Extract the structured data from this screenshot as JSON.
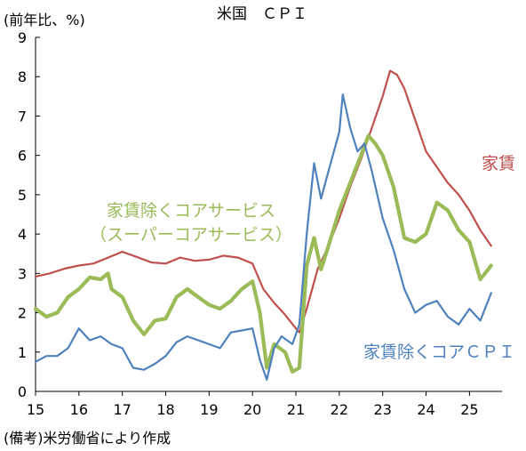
{
  "chart_data": {
    "type": "line",
    "title": "米国　ＣＰＩ",
    "ylabel": "(前年比、%)",
    "xlabel": "",
    "source_note": "(備考)米労働省により作成",
    "ylim": [
      0,
      9
    ],
    "yticks": [
      0,
      1,
      2,
      3,
      4,
      5,
      6,
      7,
      8,
      9
    ],
    "xlim": [
      2015,
      2025.75
    ],
    "xticks": [
      {
        "label": "15",
        "x": 2015.0
      },
      {
        "label": "16",
        "x": 2016.0
      },
      {
        "label": "17",
        "x": 2017.0
      },
      {
        "label": "18",
        "x": 2018.0
      },
      {
        "label": "19",
        "x": 2019.0
      },
      {
        "label": "20",
        "x": 2020.0
      },
      {
        "label": "21",
        "x": 2021.0
      },
      {
        "label": "22",
        "x": 2022.0
      },
      {
        "label": "23",
        "x": 2023.0
      },
      {
        "label": "24",
        "x": 2024.0
      },
      {
        "label": "25",
        "x": 2025.0
      }
    ],
    "grid": false,
    "series": [
      {
        "name": "家賃",
        "label_lines": [
          "家賃"
        ],
        "color": "#c0504d",
        "points": [
          [
            2015.0,
            2.92
          ],
          [
            2015.33,
            3.0
          ],
          [
            2015.67,
            3.12
          ],
          [
            2016.0,
            3.2
          ],
          [
            2016.33,
            3.25
          ],
          [
            2016.67,
            3.4
          ],
          [
            2017.0,
            3.55
          ],
          [
            2017.33,
            3.42
          ],
          [
            2017.67,
            3.28
          ],
          [
            2018.0,
            3.25
          ],
          [
            2018.33,
            3.4
          ],
          [
            2018.67,
            3.32
          ],
          [
            2019.0,
            3.35
          ],
          [
            2019.33,
            3.45
          ],
          [
            2019.67,
            3.4
          ],
          [
            2020.0,
            3.25
          ],
          [
            2020.25,
            2.6
          ],
          [
            2020.5,
            2.25
          ],
          [
            2020.75,
            1.95
          ],
          [
            2021.0,
            1.6
          ],
          [
            2021.08,
            1.5
          ],
          [
            2021.25,
            2.1
          ],
          [
            2021.5,
            3.1
          ],
          [
            2021.75,
            3.7
          ],
          [
            2022.0,
            4.4
          ],
          [
            2022.25,
            5.2
          ],
          [
            2022.5,
            5.9
          ],
          [
            2022.75,
            6.7
          ],
          [
            2023.0,
            7.5
          ],
          [
            2023.17,
            8.15
          ],
          [
            2023.33,
            8.05
          ],
          [
            2023.5,
            7.7
          ],
          [
            2023.75,
            6.9
          ],
          [
            2024.0,
            6.1
          ],
          [
            2024.25,
            5.7
          ],
          [
            2024.5,
            5.3
          ],
          [
            2024.75,
            5.0
          ],
          [
            2025.0,
            4.6
          ],
          [
            2025.25,
            4.1
          ],
          [
            2025.5,
            3.7
          ]
        ]
      },
      {
        "name": "家賃除くコアサービス",
        "label_lines": [
          "家賃除くコアサービス",
          "（スーパーコアサービス）"
        ],
        "color": "#9bbb59",
        "points": [
          [
            2015.0,
            2.1
          ],
          [
            2015.25,
            1.9
          ],
          [
            2015.5,
            2.0
          ],
          [
            2015.75,
            2.4
          ],
          [
            2016.0,
            2.6
          ],
          [
            2016.25,
            2.9
          ],
          [
            2016.5,
            2.85
          ],
          [
            2016.67,
            3.0
          ],
          [
            2016.75,
            2.6
          ],
          [
            2017.0,
            2.4
          ],
          [
            2017.25,
            1.8
          ],
          [
            2017.5,
            1.45
          ],
          [
            2017.75,
            1.8
          ],
          [
            2018.0,
            1.85
          ],
          [
            2018.25,
            2.4
          ],
          [
            2018.5,
            2.6
          ],
          [
            2018.75,
            2.4
          ],
          [
            2019.0,
            2.2
          ],
          [
            2019.25,
            2.1
          ],
          [
            2019.5,
            2.3
          ],
          [
            2019.75,
            2.6
          ],
          [
            2020.0,
            2.8
          ],
          [
            2020.17,
            2.0
          ],
          [
            2020.33,
            0.6
          ],
          [
            2020.5,
            1.2
          ],
          [
            2020.75,
            1.0
          ],
          [
            2020.92,
            0.5
          ],
          [
            2021.08,
            0.6
          ],
          [
            2021.25,
            3.2
          ],
          [
            2021.42,
            3.9
          ],
          [
            2021.58,
            3.1
          ],
          [
            2021.75,
            3.7
          ],
          [
            2022.0,
            4.6
          ],
          [
            2022.25,
            5.3
          ],
          [
            2022.5,
            6.0
          ],
          [
            2022.67,
            6.5
          ],
          [
            2022.83,
            6.3
          ],
          [
            2023.0,
            6.0
          ],
          [
            2023.25,
            5.2
          ],
          [
            2023.5,
            3.9
          ],
          [
            2023.75,
            3.8
          ],
          [
            2024.0,
            4.0
          ],
          [
            2024.25,
            4.8
          ],
          [
            2024.5,
            4.6
          ],
          [
            2024.75,
            4.1
          ],
          [
            2025.0,
            3.8
          ],
          [
            2025.25,
            2.85
          ],
          [
            2025.5,
            3.2
          ]
        ]
      },
      {
        "name": "家賃除くコアＣＰＩ",
        "label_lines": [
          "家賃除くコアＣＰＩ"
        ],
        "color": "#4f81bd",
        "points": [
          [
            2015.0,
            0.75
          ],
          [
            2015.25,
            0.9
          ],
          [
            2015.5,
            0.9
          ],
          [
            2015.75,
            1.1
          ],
          [
            2016.0,
            1.6
          ],
          [
            2016.25,
            1.3
          ],
          [
            2016.5,
            1.4
          ],
          [
            2016.75,
            1.2
          ],
          [
            2017.0,
            1.1
          ],
          [
            2017.25,
            0.6
          ],
          [
            2017.5,
            0.55
          ],
          [
            2017.75,
            0.7
          ],
          [
            2018.0,
            0.9
          ],
          [
            2018.25,
            1.25
          ],
          [
            2018.5,
            1.4
          ],
          [
            2018.75,
            1.3
          ],
          [
            2019.0,
            1.2
          ],
          [
            2019.25,
            1.1
          ],
          [
            2019.5,
            1.5
          ],
          [
            2019.75,
            1.55
          ],
          [
            2020.0,
            1.6
          ],
          [
            2020.17,
            0.8
          ],
          [
            2020.33,
            0.3
          ],
          [
            2020.5,
            1.1
          ],
          [
            2020.67,
            1.4
          ],
          [
            2020.92,
            1.2
          ],
          [
            2021.08,
            1.7
          ],
          [
            2021.25,
            4.0
          ],
          [
            2021.42,
            5.8
          ],
          [
            2021.58,
            4.9
          ],
          [
            2021.75,
            5.6
          ],
          [
            2022.0,
            6.6
          ],
          [
            2022.08,
            7.55
          ],
          [
            2022.25,
            6.7
          ],
          [
            2022.42,
            6.1
          ],
          [
            2022.58,
            6.3
          ],
          [
            2022.75,
            5.6
          ],
          [
            2023.0,
            4.4
          ],
          [
            2023.25,
            3.6
          ],
          [
            2023.5,
            2.6
          ],
          [
            2023.75,
            2.0
          ],
          [
            2024.0,
            2.2
          ],
          [
            2024.25,
            2.3
          ],
          [
            2024.5,
            1.9
          ],
          [
            2024.75,
            1.7
          ],
          [
            2025.0,
            2.1
          ],
          [
            2025.25,
            1.8
          ],
          [
            2025.5,
            2.5
          ]
        ]
      }
    ]
  }
}
